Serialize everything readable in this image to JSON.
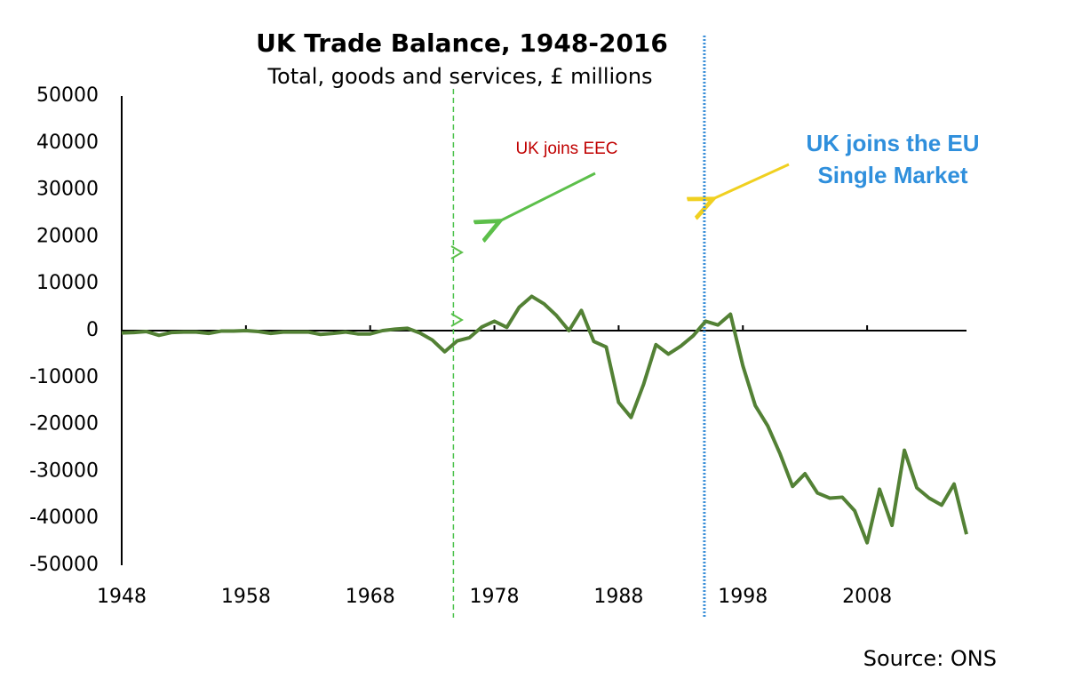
{
  "chart_data": {
    "type": "line",
    "title": "UK Trade Balance, 1948-2016",
    "subtitle": "Total, goods and services, £ millions",
    "x": [
      1948,
      1949,
      1950,
      1951,
      1952,
      1953,
      1954,
      1955,
      1956,
      1957,
      1958,
      1959,
      1960,
      1961,
      1962,
      1963,
      1964,
      1965,
      1966,
      1967,
      1968,
      1969,
      1970,
      1971,
      1972,
      1973,
      1974,
      1975,
      1976,
      1977,
      1978,
      1979,
      1980,
      1981,
      1982,
      1983,
      1984,
      1985,
      1986,
      1987,
      1988,
      1989,
      1990,
      1991,
      1992,
      1993,
      1994,
      1995,
      1996,
      1997,
      1998,
      1999,
      2000,
      2001,
      2002,
      2003,
      2004,
      2005,
      2006,
      2007,
      2008,
      2009,
      2010,
      2011,
      2012,
      2013,
      2014,
      2015,
      2016
    ],
    "series": [
      {
        "name": "Trade balance",
        "color": "#538135",
        "values": [
          -500,
          -400,
          -200,
          -1000,
          -400,
          -300,
          -300,
          -600,
          -100,
          -100,
          0,
          -200,
          -600,
          -300,
          -300,
          -300,
          -800,
          -600,
          -300,
          -700,
          -700,
          0,
          300,
          500,
          -500,
          -2000,
          -4500,
          -2200,
          -1500,
          800,
          2000,
          700,
          5000,
          7300,
          5700,
          3200,
          0,
          4300,
          -2300,
          -3500,
          -15300,
          -18500,
          -11500,
          -3000,
          -5000,
          -3300,
          -1100,
          2000,
          1200,
          3500,
          -7500,
          -16000,
          -20300,
          -26300,
          -33200,
          -30500,
          -34600,
          -35700,
          -35500,
          -38400,
          -45200,
          -33800,
          -41500,
          -25500,
          -33500,
          -35700,
          -37200,
          -32700,
          -43400
        ]
      }
    ],
    "xlim": [
      1948,
      2016
    ],
    "xticks": [
      1948,
      1958,
      1968,
      1978,
      1988,
      1998,
      2008
    ],
    "ylim": [
      -50000,
      50000
    ],
    "yticks": [
      -50000,
      -40000,
      -30000,
      -20000,
      -10000,
      0,
      10000,
      20000,
      30000,
      40000,
      50000
    ],
    "grid": false,
    "vlines": [
      {
        "x": 1974.7,
        "color": "#4cc24c",
        "style": "dashed"
      },
      {
        "x": 1994.9,
        "color": "#3a8fd8",
        "style": "dotted"
      }
    ],
    "annotations": [
      {
        "text": [
          "UK joins EEC"
        ],
        "color": "#c00000"
      },
      {
        "text": [
          "UK joins the EU",
          "Single Market"
        ],
        "color": "#2f8fdc"
      }
    ],
    "source": "Source: ONS"
  }
}
